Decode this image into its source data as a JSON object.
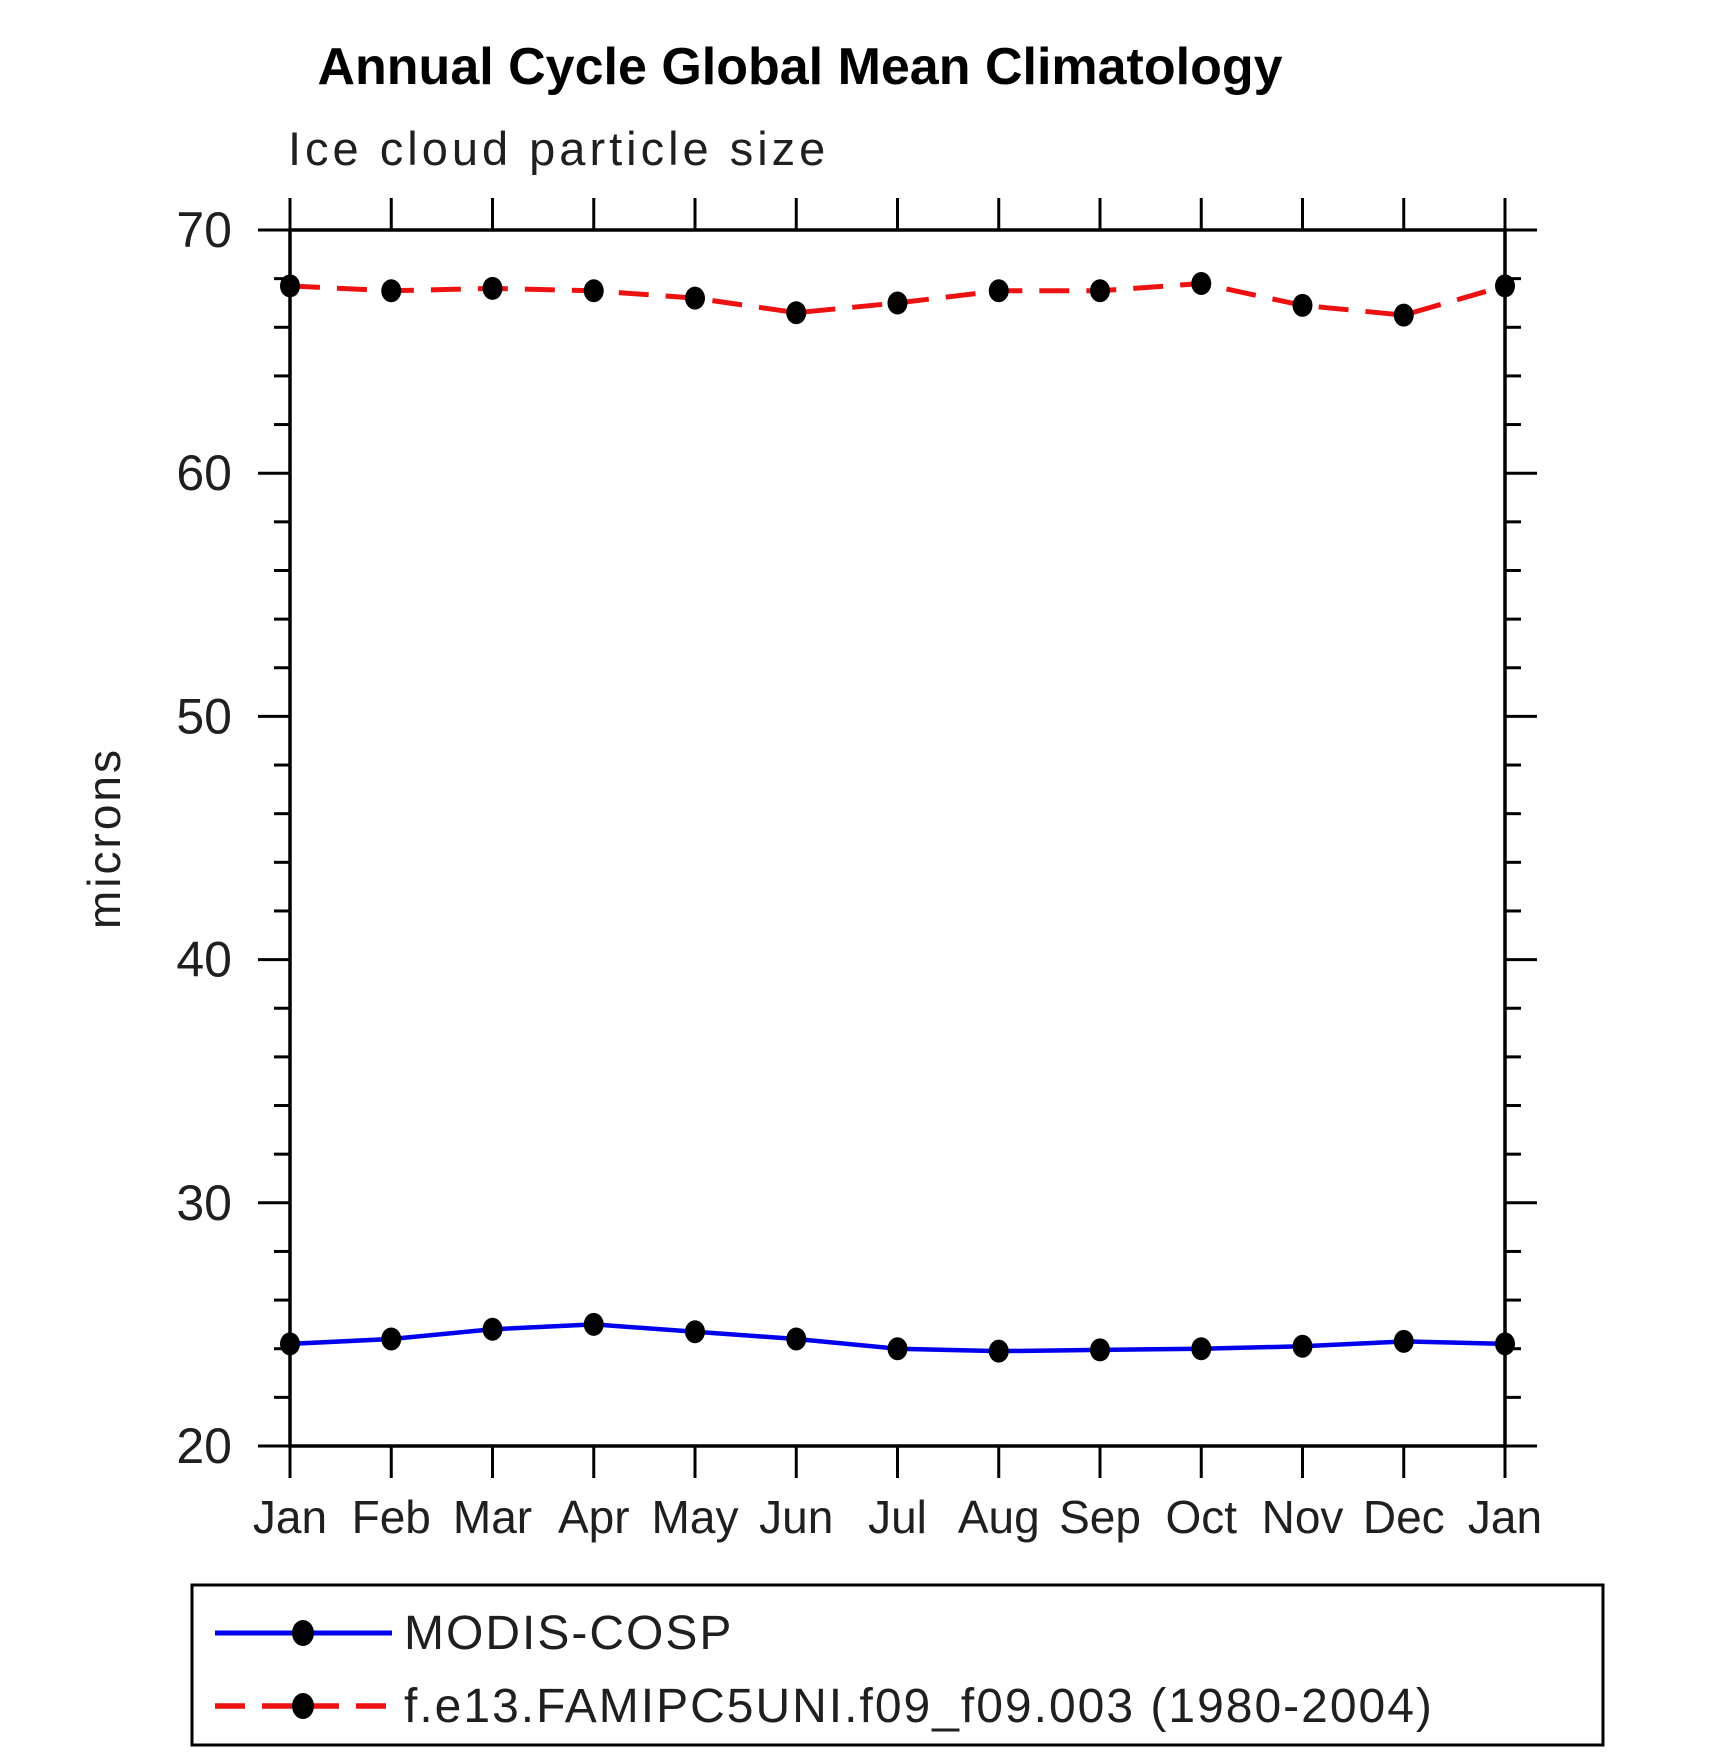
{
  "page": {
    "background": "#ffffff"
  },
  "chart_data": {
    "type": "line",
    "title": "Annual Cycle Global Mean Climatology",
    "subtitle": "Ice cloud particle size",
    "ylabel": "microns",
    "ylim": [
      20,
      70
    ],
    "y_major_ticks": [
      20,
      30,
      40,
      50,
      60,
      70
    ],
    "y_minor_step": 2,
    "grid": false,
    "categories": [
      "Jan",
      "Feb",
      "Mar",
      "Apr",
      "May",
      "Jun",
      "Jul",
      "Aug",
      "Sep",
      "Oct",
      "Nov",
      "Dec",
      "Jan"
    ],
    "series": [
      {
        "name": "MODIS-COSP",
        "color": "#0000ee",
        "line_style": "solid",
        "marker": "filled-circle",
        "marker_color": "#000000",
        "values": [
          24.2,
          24.4,
          24.8,
          25.0,
          24.7,
          24.4,
          24.0,
          23.9,
          23.95,
          24.0,
          24.1,
          24.3,
          24.2
        ]
      },
      {
        "name": "f.e13.FAMIPC5UNI.f09_f09.003 (1980-2004)",
        "color": "#ee1111",
        "line_style": "dashed",
        "marker": "filled-circle",
        "marker_color": "#000000",
        "values": [
          67.7,
          67.5,
          67.6,
          67.5,
          67.2,
          66.6,
          67.0,
          67.5,
          67.5,
          67.8,
          66.9,
          66.5,
          67.7
        ]
      }
    ],
    "legend_position": "bottom-box"
  }
}
